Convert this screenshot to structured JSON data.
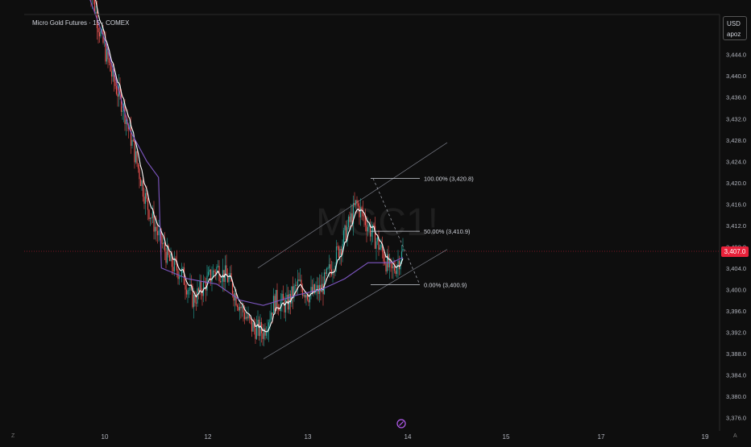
{
  "header": {
    "title": "Micro Gold Futures · 15 · COMEX",
    "currency": "USD",
    "account": "apoz",
    "watermark": "MGC1!"
  },
  "corner_labels": {
    "left": "Z",
    "right": "A"
  },
  "colors": {
    "background": "#0e0e0e",
    "up_candle": "#26a69a",
    "down_candle": "#ef5350",
    "ema": "#ffffff",
    "vwap": "#7e57c2",
    "price_line": "#e8213a",
    "channel": "#787b86"
  },
  "chart_data": {
    "type": "candlestick",
    "x_tick_labels": [
      "10",
      "12",
      "13",
      "14",
      "15",
      "17",
      "19"
    ],
    "y_ticks": [
      3376.0,
      3380.0,
      3384.0,
      3388.0,
      3392.0,
      3396.0,
      3400.0,
      3404.0,
      3408.0,
      3412.0,
      3416.0,
      3420.0,
      3424.0,
      3428.0,
      3432.0,
      3436.0,
      3440.0,
      3444.0
    ],
    "y_tick_labels": [
      "3,376.0",
      "3,380.0",
      "3,384.0",
      "3,388.0",
      "3,392.0",
      "3,396.0",
      "3,400.0",
      "3,404.0",
      "3,408.0",
      "3,412.0",
      "3,416.0",
      "3,420.0",
      "3,424.0",
      "3,428.0",
      "3,432.0",
      "3,436.0",
      "3,440.0",
      "3,444.0"
    ],
    "ylim": [
      3373.5,
      3451.5
    ],
    "last_price": 3407.0,
    "last_price_label": "3,407.0",
    "fibonacci": [
      {
        "label": "100.00% (3,420.8)",
        "price": 3420.8
      },
      {
        "label": "50.00% (3,410.9)",
        "price": 3410.9
      },
      {
        "label": "0.00% (3,400.9)",
        "price": 3400.9
      }
    ],
    "key_points": [
      {
        "t": 0,
        "price": 3458
      },
      {
        "t": 4,
        "price": 3448
      },
      {
        "t": 8,
        "price": 3440
      },
      {
        "t": 12,
        "price": 3434
      },
      {
        "t": 16,
        "price": 3425
      },
      {
        "t": 20,
        "price": 3416
      },
      {
        "t": 24,
        "price": 3410
      },
      {
        "t": 28,
        "price": 3405
      },
      {
        "t": 32,
        "price": 3403
      },
      {
        "t": 36,
        "price": 3398
      },
      {
        "t": 40,
        "price": 3401
      },
      {
        "t": 44,
        "price": 3404
      },
      {
        "t": 48,
        "price": 3402
      },
      {
        "t": 52,
        "price": 3397
      },
      {
        "t": 56,
        "price": 3393
      },
      {
        "t": 60,
        "price": 3392
      },
      {
        "t": 64,
        "price": 3398
      },
      {
        "t": 68,
        "price": 3397
      },
      {
        "t": 72,
        "price": 3401
      },
      {
        "t": 76,
        "price": 3399
      },
      {
        "t": 80,
        "price": 3400
      },
      {
        "t": 84,
        "price": 3405
      },
      {
        "t": 88,
        "price": 3410
      },
      {
        "t": 92,
        "price": 3416
      },
      {
        "t": 96,
        "price": 3412
      },
      {
        "t": 100,
        "price": 3408
      },
      {
        "t": 104,
        "price": 3403
      },
      {
        "t": 108,
        "price": 3407
      }
    ],
    "vwap_points": [
      {
        "t": 0,
        "price": 3455
      },
      {
        "t": 6,
        "price": 3446
      },
      {
        "t": 14,
        "price": 3430
      },
      {
        "t": 20,
        "price": 3424
      },
      {
        "t": 24,
        "price": 3421
      },
      {
        "t": 25,
        "price": 3404
      },
      {
        "t": 34,
        "price": 3402
      },
      {
        "t": 44,
        "price": 3401
      },
      {
        "t": 52,
        "price": 3398
      },
      {
        "t": 60,
        "price": 3397
      },
      {
        "t": 72,
        "price": 3399
      },
      {
        "t": 80,
        "price": 3400
      },
      {
        "t": 88,
        "price": 3402
      },
      {
        "t": 96,
        "price": 3405
      },
      {
        "t": 104,
        "price": 3405
      },
      {
        "t": 108,
        "price": 3406
      }
    ]
  }
}
